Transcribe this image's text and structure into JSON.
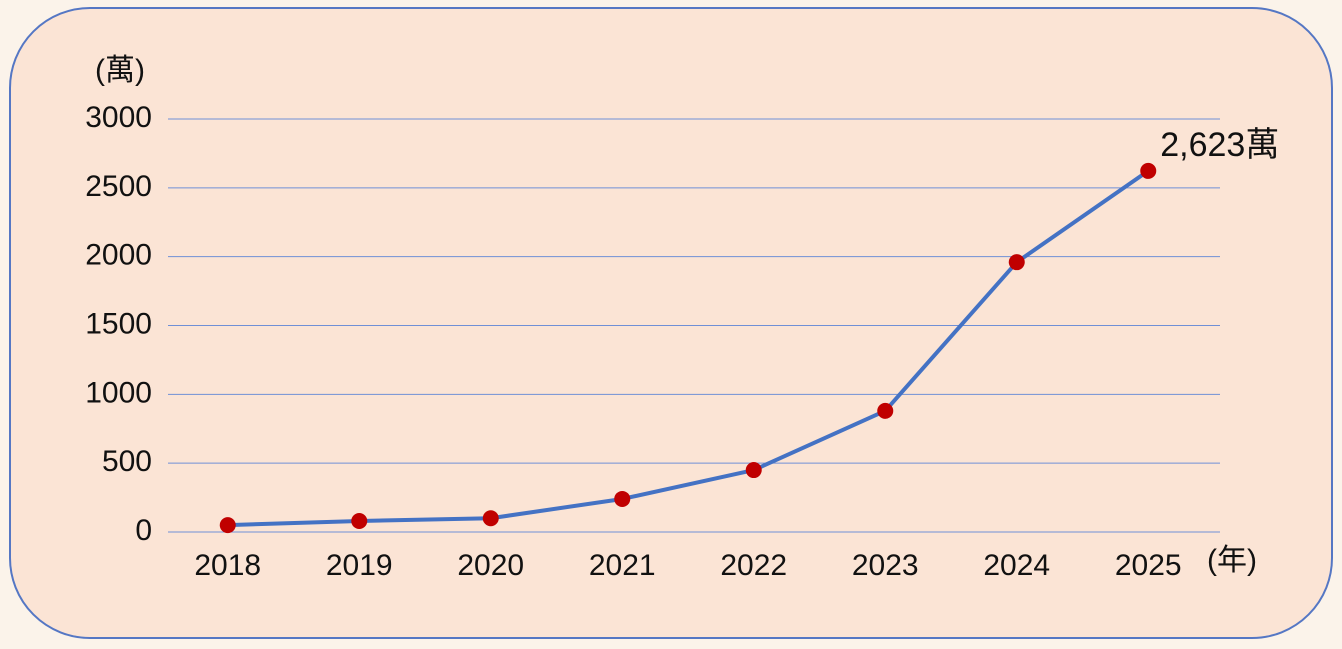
{
  "chart_data": {
    "type": "line",
    "y_unit_label": "(萬)",
    "x_unit_label": "(年)",
    "categories": [
      "2018",
      "2019",
      "2020",
      "2021",
      "2022",
      "2023",
      "2024",
      "2025"
    ],
    "values": [
      50,
      80,
      100,
      240,
      450,
      880,
      1960,
      2623
    ],
    "value_labels": [
      null,
      null,
      null,
      null,
      null,
      null,
      null,
      "2,623萬"
    ],
    "color": "#4472c4",
    "marker_color": "#c00000",
    "ylim": [
      0,
      3000
    ],
    "yticks": [
      0,
      500,
      1000,
      1500,
      2000,
      2500,
      3000
    ],
    "grid": true
  }
}
